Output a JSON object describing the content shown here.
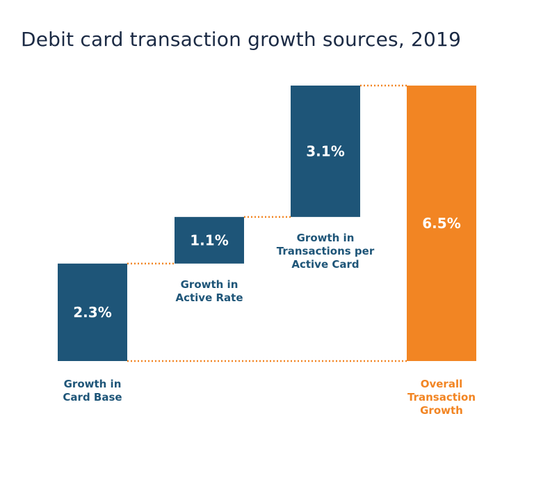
{
  "chart_data": {
    "type": "bar",
    "subtype": "waterfall",
    "title": "Debit card transaction growth sources, 2019",
    "xlabel": "",
    "ylabel": "",
    "unit": "%",
    "ylim": [
      0,
      6.5
    ],
    "grid": false,
    "legend": "none",
    "colors": {
      "component": "#1e5578",
      "total": "#f28523",
      "title": "#1b2a44",
      "total_label": "#f28523",
      "connector": "#f28523"
    },
    "categories": [
      [
        "Growth in",
        "Card Base"
      ],
      [
        "Growth in",
        "Active Rate"
      ],
      [
        "Growth in",
        "Transactions per",
        "Active Card"
      ],
      [
        "Overall",
        "Transaction",
        "Growth"
      ]
    ],
    "values": [
      2.3,
      1.1,
      3.1,
      6.5
    ],
    "data_labels": [
      "2.3%",
      "1.1%",
      "3.1%",
      "6.5%"
    ],
    "is_total": [
      false,
      false,
      false,
      true
    ]
  }
}
